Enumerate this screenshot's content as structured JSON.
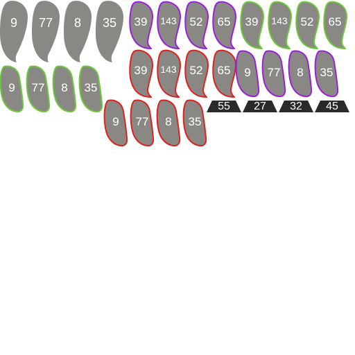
{
  "colors": {
    "fill": "#8a8885",
    "none": "#8a8885",
    "purple": "#9a1fd6",
    "green": "#6dc93a",
    "red": "#e0201c",
    "bar": "#2a2a2a"
  },
  "tile_groups": [
    {
      "id": "big-plain",
      "style": "big",
      "outline": "none",
      "labels": [
        "9",
        "77",
        "8",
        "35"
      ]
    },
    {
      "id": "purple-top",
      "style": "blade",
      "outline": "purple",
      "labels": [
        "39",
        "143",
        "52",
        "65"
      ]
    },
    {
      "id": "green-top",
      "style": "blade",
      "outline": "green",
      "labels": [
        "39",
        "143",
        "52",
        "65"
      ]
    },
    {
      "id": "green-left",
      "style": "hook",
      "outline": "green",
      "labels": [
        "9",
        "77",
        "8",
        "35"
      ]
    },
    {
      "id": "red-middle",
      "style": "blade",
      "outline": "red",
      "labels": [
        "39",
        "143",
        "52",
        "65"
      ]
    },
    {
      "id": "purple-right",
      "style": "hook",
      "outline": "purple",
      "labels": [
        "9",
        "77",
        "8",
        "35"
      ]
    },
    {
      "id": "red-bottom",
      "style": "hook",
      "outline": "red",
      "labels": [
        "9",
        "77",
        "8",
        "35"
      ]
    }
  ],
  "bars": [
    "55",
    "27",
    "32",
    "45"
  ]
}
